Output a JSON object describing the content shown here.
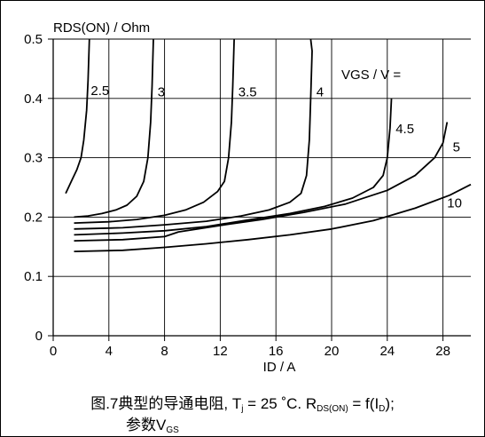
{
  "chart_data": {
    "type": "line",
    "ylabel": "RDS(ON) / Ohm",
    "xlabel": "ID / A",
    "legend_title": "VGS / V =",
    "xlim": [
      0,
      30
    ],
    "ylim": [
      0,
      0.5
    ],
    "x_ticks": [
      "0",
      "4",
      "8",
      "12",
      "16",
      "20",
      "24",
      "28"
    ],
    "y_ticks": [
      "0",
      "0.1",
      "0.2",
      "0.3",
      "0.4",
      "0.5"
    ],
    "grid": true,
    "series": [
      {
        "name": "2.5",
        "points": [
          [
            0.9,
            0.24
          ],
          [
            1.3,
            0.26
          ],
          [
            1.7,
            0.28
          ],
          [
            2.0,
            0.3
          ],
          [
            2.2,
            0.33
          ],
          [
            2.4,
            0.38
          ],
          [
            2.5,
            0.43
          ],
          [
            2.6,
            0.5
          ]
        ]
      },
      {
        "name": "3",
        "points": [
          [
            1.5,
            0.2
          ],
          [
            2.5,
            0.202
          ],
          [
            3.5,
            0.206
          ],
          [
            4.5,
            0.212
          ],
          [
            5.3,
            0.22
          ],
          [
            6.0,
            0.235
          ],
          [
            6.5,
            0.26
          ],
          [
            6.8,
            0.3
          ],
          [
            7.0,
            0.36
          ],
          [
            7.1,
            0.42
          ],
          [
            7.2,
            0.5
          ]
        ]
      },
      {
        "name": "3.5",
        "points": [
          [
            1.5,
            0.19
          ],
          [
            4,
            0.192
          ],
          [
            6,
            0.196
          ],
          [
            8,
            0.203
          ],
          [
            9.5,
            0.212
          ],
          [
            10.8,
            0.225
          ],
          [
            11.8,
            0.243
          ],
          [
            12.3,
            0.26
          ],
          [
            12.6,
            0.3
          ],
          [
            12.8,
            0.36
          ],
          [
            12.9,
            0.42
          ],
          [
            13.0,
            0.5
          ]
        ]
      },
      {
        "name": "4",
        "points": [
          [
            1.5,
            0.18
          ],
          [
            5,
            0.182
          ],
          [
            8,
            0.187
          ],
          [
            11,
            0.193
          ],
          [
            13.5,
            0.202
          ],
          [
            15.5,
            0.212
          ],
          [
            17,
            0.225
          ],
          [
            17.8,
            0.24
          ],
          [
            18.2,
            0.27
          ],
          [
            18.4,
            0.33
          ],
          [
            18.5,
            0.4
          ],
          [
            18.6,
            0.48
          ],
          [
            18.5,
            0.5
          ]
        ]
      },
      {
        "name": "4.5",
        "points": [
          [
            1.5,
            0.17
          ],
          [
            5,
            0.173
          ],
          [
            8,
            0.177
          ],
          [
            11,
            0.184
          ],
          [
            14,
            0.195
          ],
          [
            17,
            0.206
          ],
          [
            19.5,
            0.218
          ],
          [
            21.5,
            0.232
          ],
          [
            23,
            0.25
          ],
          [
            23.7,
            0.27
          ],
          [
            24.0,
            0.3
          ],
          [
            24.2,
            0.35
          ],
          [
            24.3,
            0.4
          ]
        ]
      },
      {
        "name": "5",
        "points": [
          [
            1.5,
            0.16
          ],
          [
            5,
            0.162
          ],
          [
            8,
            0.167
          ],
          [
            9,
            0.175
          ],
          [
            12,
            0.186
          ],
          [
            15,
            0.196
          ],
          [
            18,
            0.208
          ],
          [
            21,
            0.222
          ],
          [
            24,
            0.245
          ],
          [
            26,
            0.27
          ],
          [
            27.4,
            0.3
          ],
          [
            28,
            0.325
          ],
          [
            28.3,
            0.36
          ]
        ]
      },
      {
        "name": "10",
        "points": [
          [
            1.5,
            0.142
          ],
          [
            5,
            0.144
          ],
          [
            8,
            0.149
          ],
          [
            11,
            0.155
          ],
          [
            14,
            0.162
          ],
          [
            17,
            0.17
          ],
          [
            20,
            0.18
          ],
          [
            23,
            0.194
          ],
          [
            26,
            0.215
          ],
          [
            28.5,
            0.237
          ],
          [
            30,
            0.255
          ]
        ]
      }
    ]
  },
  "caption": {
    "line1_a": "图.7典型的导通电阻, T",
    "line1_b": "j",
    "line1_c": " = 25 ˚C. R",
    "line1_d": "DS(ON)",
    "line1_e": " = f(I",
    "line1_f": "D",
    "line1_g": ");",
    "line2_a": "参数V",
    "line2_b": "GS"
  }
}
